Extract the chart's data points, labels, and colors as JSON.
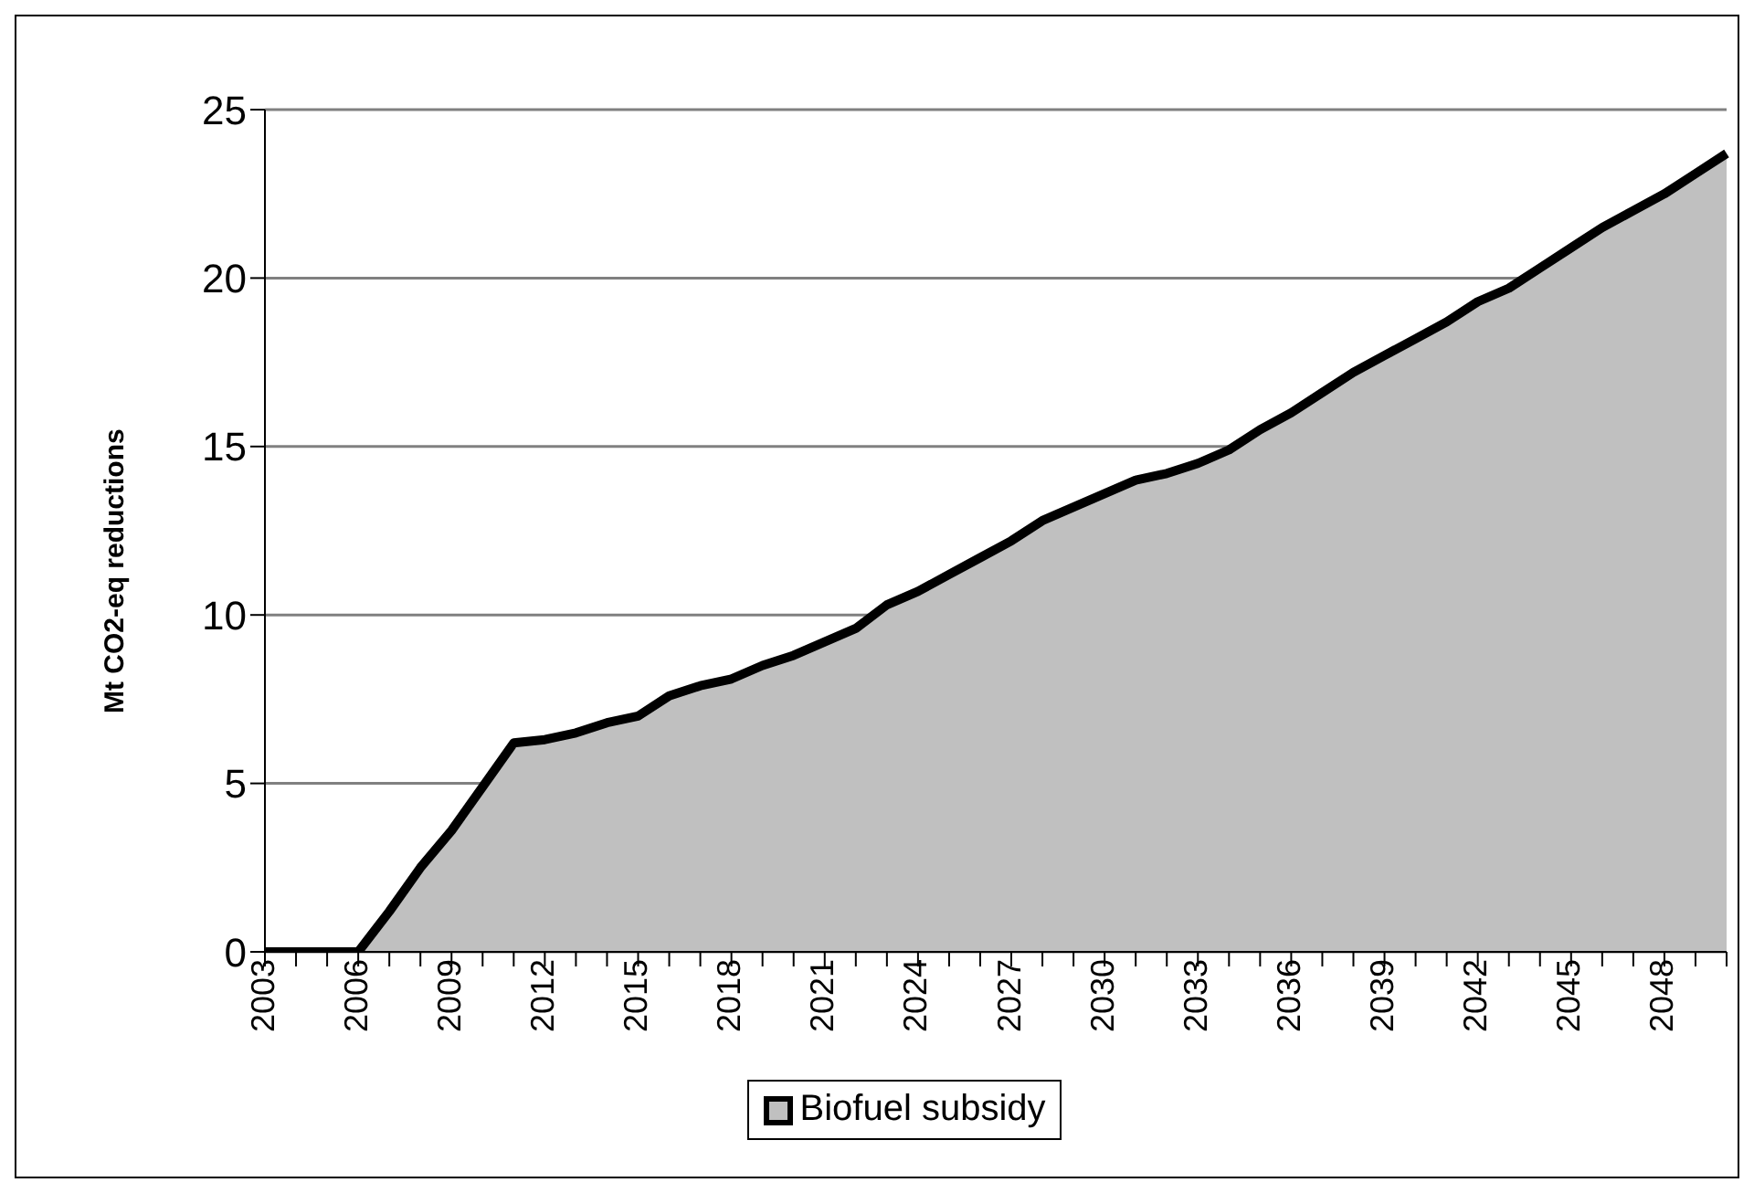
{
  "chart_data": {
    "type": "area",
    "ylabel": "Mt CO2-eq reductions",
    "categories": [
      "2003",
      null,
      null,
      "2006",
      null,
      null,
      "2009",
      null,
      null,
      "2012",
      null,
      null,
      "2015",
      null,
      null,
      "2018",
      null,
      null,
      "2021",
      null,
      null,
      "2024",
      null,
      null,
      "2027",
      null,
      null,
      "2030",
      null,
      null,
      "2033",
      null,
      null,
      "2036",
      null,
      null,
      "2039",
      null,
      null,
      "2042",
      null,
      null,
      "2045",
      null,
      null,
      "2048",
      null,
      null
    ],
    "series": [
      {
        "name": "Biofuel subsidy",
        "color": "#c0c0c0",
        "values": [
          0,
          0,
          0,
          0,
          1.2,
          2.5,
          3.6,
          4.9,
          6.2,
          6.3,
          6.5,
          6.8,
          7.0,
          7.6,
          7.9,
          8.1,
          8.5,
          8.8,
          9.2,
          9.6,
          10.3,
          10.7,
          11.2,
          11.7,
          12.2,
          12.8,
          13.2,
          13.6,
          14.0,
          14.2,
          14.5,
          14.9,
          15.5,
          16.0,
          16.6,
          17.2,
          17.7,
          18.2,
          18.7,
          19.3,
          19.7,
          20.3,
          20.9,
          21.5,
          22.0,
          22.5,
          23.1,
          23.7
        ]
      }
    ],
    "ylim": [
      0,
      25
    ],
    "yticks": [
      0,
      5,
      10,
      15,
      20,
      25
    ],
    "grid": "y",
    "legend": "bottom"
  }
}
